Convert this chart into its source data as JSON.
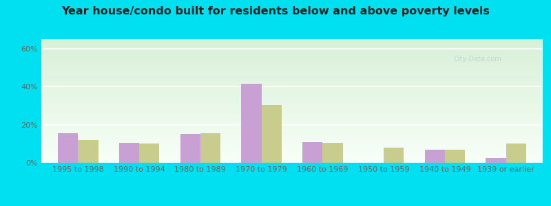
{
  "title": "Year house/condo built for residents below and above poverty levels",
  "categories": [
    "1995 to 1998",
    "1990 to 1994",
    "1980 to 1989",
    "1970 to 1979",
    "1960 to 1969",
    "1950 to 1959",
    "1940 to 1949",
    "1939 or earlier"
  ],
  "below_poverty": [
    15.5,
    10.5,
    15.0,
    41.5,
    11.0,
    0.0,
    7.0,
    2.5
  ],
  "above_poverty": [
    12.0,
    10.0,
    15.5,
    30.5,
    10.5,
    8.0,
    7.0,
    10.0
  ],
  "below_color": "#c8a0d4",
  "above_color": "#c8cc8c",
  "outer_bg": "#00e0f0",
  "plot_bg_top": "#d8f0d8",
  "plot_bg_bottom": "#f8fff8",
  "ylim": [
    0,
    65
  ],
  "yticks": [
    0,
    20,
    40,
    60
  ],
  "ytick_labels": [
    "0%",
    "20%",
    "40%",
    "60%"
  ],
  "title_fontsize": 11.5,
  "tick_fontsize": 8,
  "legend_fontsize": 9,
  "title_color": "#222222",
  "tick_color": "#666666"
}
